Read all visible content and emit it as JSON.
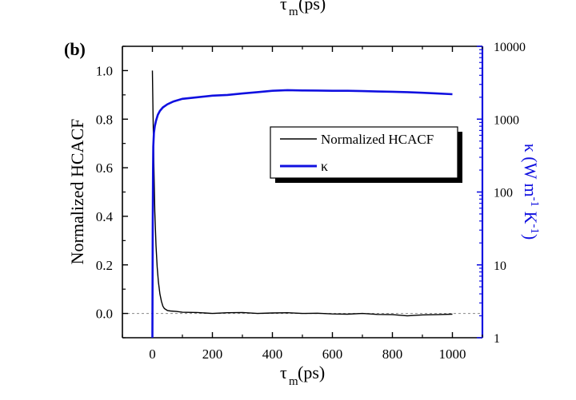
{
  "top_cutoff_label": {
    "tau": "τ",
    "sub": "m",
    "unit": "(ps)"
  },
  "chart_data": {
    "type": "line",
    "panel_label": "(b)",
    "xlabel": {
      "tau": "τ",
      "sub": "m",
      "unit": "(ps)"
    },
    "ylabel_left": "Normalized HCACF",
    "ylabel_right": "κ (W m-1 K-1)",
    "xlim": [
      -100,
      1100
    ],
    "ylim_left": [
      -0.1,
      1.1
    ],
    "ylim_right": [
      1,
      10000
    ],
    "right_axis_scale": "log",
    "x_ticks": [
      0,
      200,
      400,
      600,
      800,
      1000
    ],
    "y_left_ticks": [
      "0.0",
      "0.2",
      "0.4",
      "0.6",
      "0.8",
      "1.0"
    ],
    "y_right_ticks": [
      "1",
      "10",
      "100",
      "1000",
      "10000"
    ],
    "reference_line_y": 0.0,
    "legend": {
      "placement": "right-middle",
      "entries": [
        "Normalized HCACF",
        "κ"
      ]
    },
    "colors": {
      "hcacf": "#000000",
      "kappa": "#1010e0",
      "right_axis": "#1010e0"
    },
    "series": [
      {
        "name": "Normalized HCACF",
        "axis": "left",
        "x": [
          0,
          2,
          5,
          8,
          12,
          16,
          20,
          25,
          30,
          35,
          40,
          50,
          60,
          80,
          100,
          150,
          200,
          250,
          300,
          350,
          400,
          450,
          500,
          550,
          600,
          650,
          700,
          750,
          800,
          850,
          900,
          950,
          1000
        ],
        "y": [
          1.0,
          0.82,
          0.6,
          0.42,
          0.28,
          0.19,
          0.13,
          0.08,
          0.05,
          0.03,
          0.02,
          0.012,
          0.01,
          0.008,
          0.005,
          0.004,
          0.0,
          0.003,
          0.004,
          0.0,
          0.002,
          0.003,
          0.0,
          0.001,
          -0.002,
          -0.003,
          0.0,
          -0.004,
          -0.005,
          -0.01,
          -0.006,
          -0.005,
          -0.003
        ]
      },
      {
        "name": "κ",
        "axis": "right",
        "x": [
          0,
          1,
          2,
          3,
          5,
          8,
          12,
          18,
          25,
          35,
          50,
          70,
          100,
          150,
          200,
          250,
          300,
          350,
          400,
          450,
          500,
          550,
          600,
          650,
          700,
          750,
          800,
          850,
          900,
          950,
          1000
        ],
        "y": [
          1,
          30,
          200,
          420,
          650,
          800,
          950,
          1150,
          1300,
          1450,
          1600,
          1750,
          1900,
          2000,
          2100,
          2150,
          2250,
          2350,
          2450,
          2500,
          2480,
          2470,
          2450,
          2450,
          2430,
          2400,
          2380,
          2350,
          2300,
          2250,
          2200
        ]
      }
    ]
  }
}
